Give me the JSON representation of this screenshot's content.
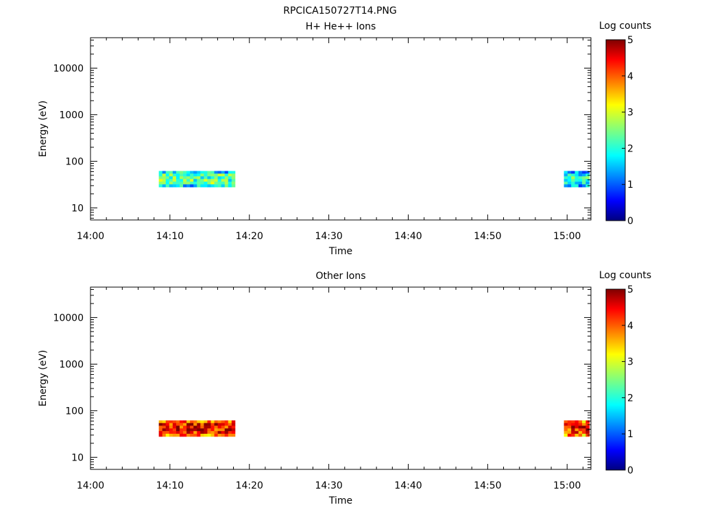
{
  "figure_title": "RPCICA150727T14.PNG",
  "chart_data": [
    {
      "type": "heatmap",
      "title": "H+ He++ Ions",
      "xlabel": "Time",
      "ylabel": "Energy (eV)",
      "x_ticks": [
        "14:00",
        "14:10",
        "14:20",
        "14:30",
        "14:40",
        "14:50",
        "15:00"
      ],
      "x_range_min": [
        0,
        63
      ],
      "y_scale": "log",
      "y_ticks": [
        10,
        100,
        1000,
        10000
      ],
      "y_tick_labels": [
        "10",
        "100",
        "1000",
        "10000"
      ],
      "y_range": [
        5.5,
        45000
      ],
      "colorbar": {
        "label": "Log counts",
        "range": [
          0,
          5
        ],
        "ticks": [
          "0",
          "1",
          "2",
          "3",
          "4",
          "5"
        ]
      },
      "data_blocks": [
        {
          "t_start_min": 8.6,
          "t_end_min": 18.2,
          "e_min_ev": 28,
          "e_max_ev": 62,
          "level": 2.3
        },
        {
          "t_start_min": 59.6,
          "t_end_min": 62.8,
          "e_min_ev": 28,
          "e_max_ev": 62,
          "level": 2.0
        }
      ]
    },
    {
      "type": "heatmap",
      "title": "Other Ions",
      "xlabel": "Time",
      "ylabel": "Energy (eV)",
      "x_ticks": [
        "14:00",
        "14:10",
        "14:20",
        "14:30",
        "14:40",
        "14:50",
        "15:00"
      ],
      "x_range_min": [
        0,
        63
      ],
      "y_scale": "log",
      "y_ticks": [
        10,
        100,
        1000,
        10000
      ],
      "y_tick_labels": [
        "10",
        "100",
        "1000",
        "10000"
      ],
      "y_range": [
        5.5,
        45000
      ],
      "colorbar": {
        "label": "Log counts",
        "range": [
          0,
          5
        ],
        "ticks": [
          "0",
          "1",
          "2",
          "3",
          "4",
          "5"
        ]
      },
      "data_blocks": [
        {
          "t_start_min": 8.6,
          "t_end_min": 18.2,
          "e_min_ev": 28,
          "e_max_ev": 62,
          "level": 4.4
        },
        {
          "t_start_min": 59.6,
          "t_end_min": 62.8,
          "e_min_ev": 28,
          "e_max_ev": 62,
          "level": 4.3
        }
      ]
    }
  ]
}
